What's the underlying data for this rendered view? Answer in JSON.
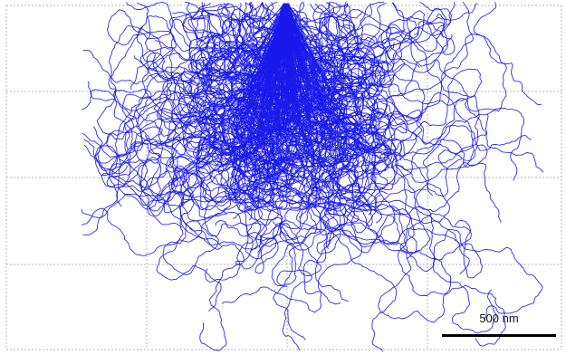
{
  "figure": {
    "trajectory_color": "#1a1aeb",
    "grid_color": "#b4b4b4",
    "background_color": "#ffffff"
  },
  "scale_bar": {
    "label": "500 nm",
    "length_nm": 500,
    "color": "#000000"
  }
}
